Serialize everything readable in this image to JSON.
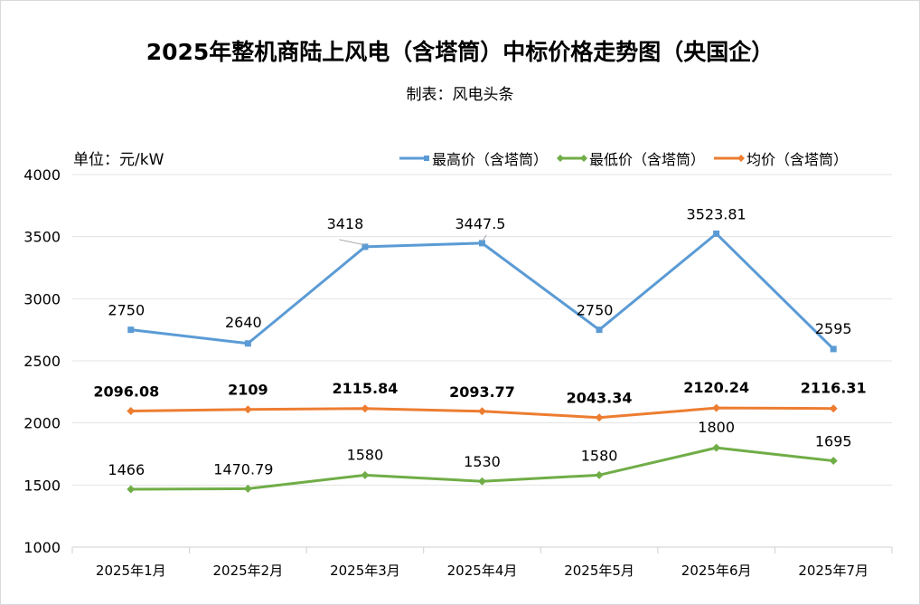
{
  "chart_data": {
    "type": "line",
    "title": "2025年整机商陆上风电（含塔筒）中标价格走势图（央国企）",
    "subtitle": "制表：风电头条",
    "unit_label": "单位：元/kW",
    "xlabel": "",
    "ylabel": "元/kW",
    "ylim": [
      1000,
      4000
    ],
    "yticks": [
      1000,
      1500,
      2000,
      2500,
      3000,
      3500,
      4000
    ],
    "grid": true,
    "legend_position": "top-right",
    "categories": [
      "2025年1月",
      "2025年2月",
      "2025年3月",
      "2025年4月",
      "2025年5月",
      "2025年6月",
      "2025年7月"
    ],
    "series": [
      {
        "name": "最高价（含塔筒）",
        "color": "#5b9bd5",
        "marker": "square",
        "label_bold": false,
        "values": [
          2750,
          2640,
          3418,
          3447.5,
          2750,
          3523.81,
          2595
        ],
        "labels": [
          "2750",
          "2640",
          "3418",
          "3447.5",
          "2750",
          "3523.81",
          "2595"
        ]
      },
      {
        "name": "最低价（含塔筒）",
        "color": "#70ad47",
        "marker": "diamond",
        "label_bold": false,
        "values": [
          1466,
          1470.79,
          1580,
          1530,
          1580,
          1800,
          1695
        ],
        "labels": [
          "1466",
          "1470.79",
          "1580",
          "1530",
          "1580",
          "1800",
          "1695"
        ]
      },
      {
        "name": "均价（含塔筒）",
        "color": "#ed7d31",
        "marker": "diamond",
        "label_bold": true,
        "values": [
          2096.08,
          2109,
          2115.84,
          2093.77,
          2043.34,
          2120.24,
          2116.31
        ],
        "labels": [
          "2096.08",
          "2109",
          "2115.84",
          "2093.77",
          "2043.34",
          "2120.24",
          "2116.31"
        ]
      }
    ]
  }
}
